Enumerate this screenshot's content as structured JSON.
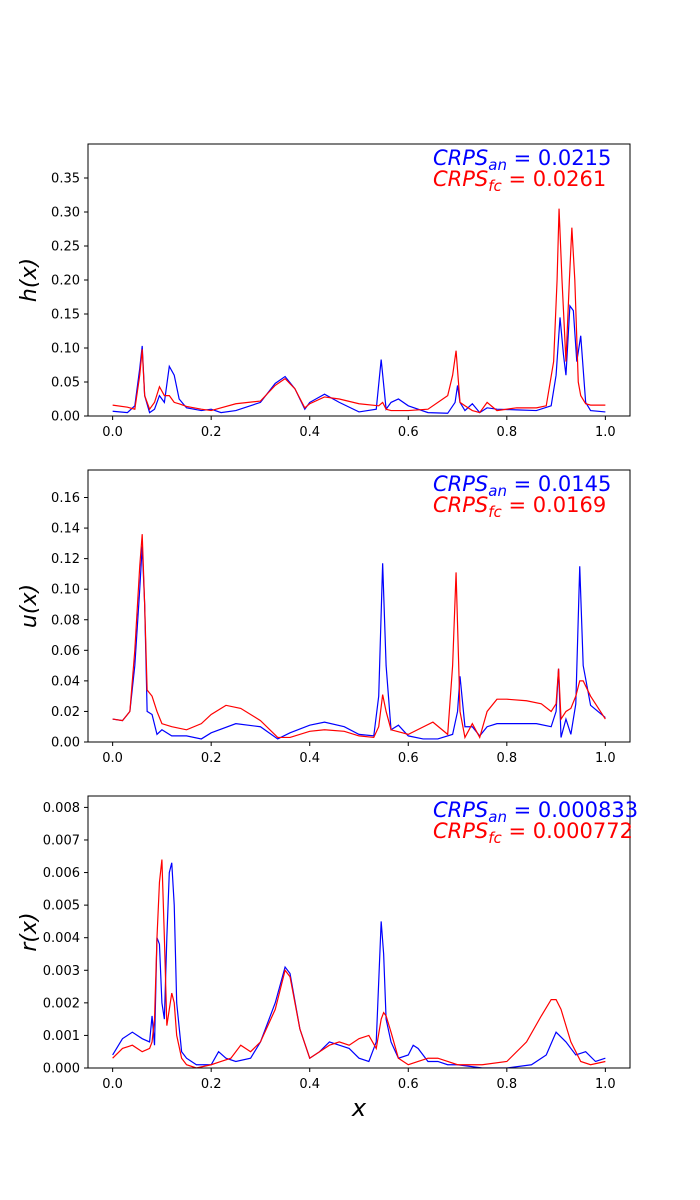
{
  "chart_data": [
    {
      "type": "line",
      "ylabel": "h(x)",
      "xlabel": "",
      "xlim": [
        -0.05,
        1.05
      ],
      "ylim": [
        0,
        0.4
      ],
      "xticks": [
        "0.0",
        "0.2",
        "0.4",
        "0.6",
        "0.8",
        "1.0"
      ],
      "yticks": [
        "0.00",
        "0.05",
        "0.10",
        "0.15",
        "0.20",
        "0.25",
        "0.30",
        "0.35"
      ],
      "annotations": [
        {
          "label": "CRPS",
          "sub": "an",
          "value": "= 0.0215",
          "color": "#0000ff"
        },
        {
          "label": "CRPS",
          "sub": "fc",
          "value": "= 0.0261",
          "color": "#ff0000"
        }
      ],
      "series": [
        {
          "color": "#0000ff",
          "x": [
            0,
            0.03,
            0.045,
            0.055,
            0.06,
            0.065,
            0.075,
            0.085,
            0.095,
            0.105,
            0.115,
            0.125,
            0.135,
            0.15,
            0.18,
            0.2,
            0.22,
            0.25,
            0.3,
            0.33,
            0.35,
            0.37,
            0.39,
            0.4,
            0.43,
            0.46,
            0.5,
            0.535,
            0.545,
            0.555,
            0.565,
            0.58,
            0.6,
            0.64,
            0.68,
            0.695,
            0.7,
            0.705,
            0.715,
            0.73,
            0.745,
            0.76,
            0.78,
            0.82,
            0.86,
            0.89,
            0.9,
            0.908,
            0.915,
            0.92,
            0.928,
            0.935,
            0.942,
            0.95,
            0.96,
            0.97,
            1.0
          ],
          "y": [
            0.007,
            0.005,
            0.015,
            0.07,
            0.103,
            0.03,
            0.005,
            0.01,
            0.03,
            0.02,
            0.073,
            0.06,
            0.025,
            0.012,
            0.008,
            0.01,
            0.005,
            0.008,
            0.02,
            0.048,
            0.058,
            0.04,
            0.01,
            0.02,
            0.032,
            0.02,
            0.006,
            0.01,
            0.083,
            0.01,
            0.02,
            0.025,
            0.015,
            0.005,
            0.004,
            0.02,
            0.045,
            0.02,
            0.008,
            0.018,
            0.005,
            0.012,
            0.01,
            0.009,
            0.008,
            0.015,
            0.06,
            0.145,
            0.09,
            0.06,
            0.162,
            0.155,
            0.08,
            0.118,
            0.02,
            0.008,
            0.006
          ]
        },
        {
          "color": "#ff0000",
          "x": [
            0,
            0.03,
            0.045,
            0.055,
            0.06,
            0.065,
            0.075,
            0.085,
            0.095,
            0.105,
            0.115,
            0.125,
            0.135,
            0.15,
            0.18,
            0.2,
            0.25,
            0.3,
            0.33,
            0.35,
            0.37,
            0.39,
            0.4,
            0.43,
            0.46,
            0.5,
            0.54,
            0.548,
            0.555,
            0.565,
            0.6,
            0.64,
            0.68,
            0.69,
            0.697,
            0.705,
            0.715,
            0.73,
            0.745,
            0.76,
            0.78,
            0.82,
            0.86,
            0.88,
            0.895,
            0.902,
            0.906,
            0.912,
            0.92,
            0.927,
            0.932,
            0.938,
            0.945,
            0.95,
            0.96,
            0.97,
            1.0
          ],
          "y": [
            0.016,
            0.013,
            0.01,
            0.06,
            0.098,
            0.03,
            0.01,
            0.02,
            0.043,
            0.03,
            0.03,
            0.02,
            0.018,
            0.014,
            0.01,
            0.008,
            0.018,
            0.022,
            0.045,
            0.055,
            0.04,
            0.012,
            0.018,
            0.028,
            0.025,
            0.018,
            0.015,
            0.02,
            0.01,
            0.008,
            0.008,
            0.01,
            0.03,
            0.06,
            0.096,
            0.02,
            0.015,
            0.008,
            0.005,
            0.02,
            0.008,
            0.012,
            0.012,
            0.015,
            0.08,
            0.2,
            0.305,
            0.2,
            0.08,
            0.2,
            0.277,
            0.2,
            0.05,
            0.03,
            0.018,
            0.016,
            0.016
          ]
        }
      ]
    },
    {
      "type": "line",
      "ylabel": "u(x)",
      "xlabel": "",
      "xlim": [
        -0.05,
        1.05
      ],
      "ylim": [
        0,
        0.178
      ],
      "xticks": [
        "0.0",
        "0.2",
        "0.4",
        "0.6",
        "0.8",
        "1.0"
      ],
      "yticks": [
        "0.00",
        "0.02",
        "0.04",
        "0.06",
        "0.08",
        "0.10",
        "0.12",
        "0.14",
        "0.16"
      ],
      "annotations": [
        {
          "label": "CRPS",
          "sub": "an",
          "value": "= 0.0145",
          "color": "#0000ff"
        },
        {
          "label": "CRPS",
          "sub": "fc",
          "value": "= 0.0169",
          "color": "#ff0000"
        }
      ],
      "series": [
        {
          "color": "#0000ff",
          "x": [
            0,
            0.02,
            0.035,
            0.045,
            0.055,
            0.06,
            0.065,
            0.07,
            0.08,
            0.09,
            0.1,
            0.12,
            0.15,
            0.18,
            0.2,
            0.25,
            0.3,
            0.335,
            0.36,
            0.4,
            0.43,
            0.47,
            0.5,
            0.53,
            0.54,
            0.548,
            0.555,
            0.565,
            0.58,
            0.6,
            0.63,
            0.66,
            0.69,
            0.7,
            0.705,
            0.715,
            0.73,
            0.745,
            0.76,
            0.78,
            0.82,
            0.86,
            0.89,
            0.9,
            0.905,
            0.91,
            0.92,
            0.93,
            0.94,
            0.948,
            0.955,
            0.97,
            1.0
          ],
          "y": [
            0.015,
            0.014,
            0.02,
            0.05,
            0.1,
            0.128,
            0.09,
            0.02,
            0.018,
            0.005,
            0.008,
            0.004,
            0.004,
            0.002,
            0.006,
            0.012,
            0.01,
            0.002,
            0.006,
            0.011,
            0.013,
            0.01,
            0.005,
            0.004,
            0.03,
            0.117,
            0.05,
            0.008,
            0.011,
            0.004,
            0.002,
            0.002,
            0.005,
            0.02,
            0.043,
            0.01,
            0.01,
            0.004,
            0.01,
            0.012,
            0.012,
            0.012,
            0.01,
            0.02,
            0.048,
            0.003,
            0.015,
            0.005,
            0.025,
            0.115,
            0.05,
            0.024,
            0.016
          ]
        },
        {
          "color": "#ff0000",
          "x": [
            0,
            0.02,
            0.035,
            0.045,
            0.055,
            0.06,
            0.065,
            0.07,
            0.08,
            0.09,
            0.1,
            0.12,
            0.15,
            0.18,
            0.2,
            0.23,
            0.26,
            0.3,
            0.335,
            0.36,
            0.4,
            0.43,
            0.47,
            0.5,
            0.53,
            0.54,
            0.548,
            0.555,
            0.565,
            0.6,
            0.65,
            0.68,
            0.69,
            0.697,
            0.705,
            0.715,
            0.73,
            0.745,
            0.76,
            0.78,
            0.8,
            0.84,
            0.87,
            0.89,
            0.9,
            0.905,
            0.91,
            0.92,
            0.93,
            0.94,
            0.948,
            0.955,
            0.97,
            1.0
          ],
          "y": [
            0.015,
            0.014,
            0.02,
            0.06,
            0.115,
            0.136,
            0.09,
            0.034,
            0.03,
            0.02,
            0.012,
            0.01,
            0.008,
            0.012,
            0.018,
            0.024,
            0.022,
            0.014,
            0.003,
            0.003,
            0.007,
            0.008,
            0.007,
            0.004,
            0.003,
            0.01,
            0.031,
            0.02,
            0.008,
            0.005,
            0.013,
            0.005,
            0.05,
            0.111,
            0.02,
            0.003,
            0.012,
            0.003,
            0.02,
            0.028,
            0.028,
            0.027,
            0.025,
            0.02,
            0.025,
            0.048,
            0.015,
            0.02,
            0.022,
            0.03,
            0.04,
            0.04,
            0.03,
            0.015
          ]
        }
      ]
    },
    {
      "type": "line",
      "ylabel": "r(x)",
      "xlabel": "x",
      "xlim": [
        -0.05,
        1.05
      ],
      "ylim": [
        0,
        0.00835
      ],
      "xticks": [
        "0.0",
        "0.2",
        "0.4",
        "0.6",
        "0.8",
        "1.0"
      ],
      "yticks": [
        "0.000",
        "0.001",
        "0.002",
        "0.003",
        "0.004",
        "0.005",
        "0.006",
        "0.007",
        "0.008"
      ],
      "annotations": [
        {
          "label": "CRPS",
          "sub": "an",
          "value": "= 0.000833",
          "color": "#0000ff"
        },
        {
          "label": "CRPS",
          "sub": "fc",
          "value": "= 0.000772",
          "color": "#ff0000"
        }
      ],
      "series": [
        {
          "color": "#0000ff",
          "x": [
            0,
            0.02,
            0.04,
            0.06,
            0.075,
            0.08,
            0.085,
            0.09,
            0.095,
            0.1,
            0.105,
            0.11,
            0.115,
            0.12,
            0.125,
            0.13,
            0.14,
            0.15,
            0.17,
            0.2,
            0.215,
            0.23,
            0.25,
            0.28,
            0.3,
            0.33,
            0.35,
            0.36,
            0.38,
            0.4,
            0.42,
            0.44,
            0.46,
            0.48,
            0.5,
            0.52,
            0.535,
            0.545,
            0.55,
            0.555,
            0.565,
            0.58,
            0.6,
            0.61,
            0.62,
            0.64,
            0.66,
            0.68,
            0.7,
            0.75,
            0.8,
            0.85,
            0.88,
            0.9,
            0.92,
            0.94,
            0.96,
            0.98,
            1.0
          ],
          "y": [
            0.0004,
            0.0009,
            0.0011,
            0.0009,
            0.0008,
            0.0016,
            0.0007,
            0.004,
            0.0038,
            0.002,
            0.0015,
            0.004,
            0.006,
            0.0063,
            0.005,
            0.002,
            0.0005,
            0.0003,
            0.0001,
            0.0001,
            0.0005,
            0.0003,
            0.0002,
            0.0003,
            0.0008,
            0.002,
            0.0031,
            0.0029,
            0.0012,
            0.0003,
            0.0005,
            0.0008,
            0.0007,
            0.0006,
            0.0003,
            0.0002,
            0.0008,
            0.0045,
            0.0035,
            0.0015,
            0.0008,
            0.0003,
            0.0004,
            0.0007,
            0.0006,
            0.0002,
            0.0002,
            0.0001,
            0.0001,
            0.0,
            0.0,
            0.0001,
            0.0004,
            0.0011,
            0.0008,
            0.0004,
            0.0005,
            0.0002,
            0.0003
          ]
        },
        {
          "color": "#ff0000",
          "x": [
            0,
            0.02,
            0.04,
            0.06,
            0.075,
            0.08,
            0.085,
            0.09,
            0.095,
            0.1,
            0.105,
            0.11,
            0.115,
            0.12,
            0.125,
            0.13,
            0.14,
            0.15,
            0.17,
            0.2,
            0.22,
            0.24,
            0.26,
            0.28,
            0.3,
            0.33,
            0.35,
            0.36,
            0.38,
            0.4,
            0.42,
            0.44,
            0.46,
            0.48,
            0.5,
            0.52,
            0.535,
            0.545,
            0.55,
            0.555,
            0.565,
            0.58,
            0.6,
            0.62,
            0.64,
            0.66,
            0.68,
            0.7,
            0.75,
            0.8,
            0.84,
            0.87,
            0.89,
            0.9,
            0.91,
            0.93,
            0.95,
            0.97,
            1.0
          ],
          "y": [
            0.0003,
            0.0006,
            0.0007,
            0.0005,
            0.0006,
            0.0008,
            0.0015,
            0.004,
            0.0057,
            0.0064,
            0.004,
            0.0013,
            0.0018,
            0.0023,
            0.002,
            0.001,
            0.0003,
            0.0001,
            0.0,
            0.0001,
            0.0002,
            0.0003,
            0.0007,
            0.0005,
            0.0008,
            0.0018,
            0.003,
            0.0028,
            0.0012,
            0.0003,
            0.0005,
            0.0007,
            0.0008,
            0.0007,
            0.0009,
            0.001,
            0.0006,
            0.0015,
            0.0017,
            0.0016,
            0.0011,
            0.0003,
            0.0001,
            0.0002,
            0.0003,
            0.0003,
            0.0002,
            0.0001,
            0.0001,
            0.0002,
            0.0008,
            0.0016,
            0.0021,
            0.0021,
            0.0018,
            0.0008,
            0.0002,
            0.0001,
            0.0002
          ]
        }
      ]
    }
  ]
}
